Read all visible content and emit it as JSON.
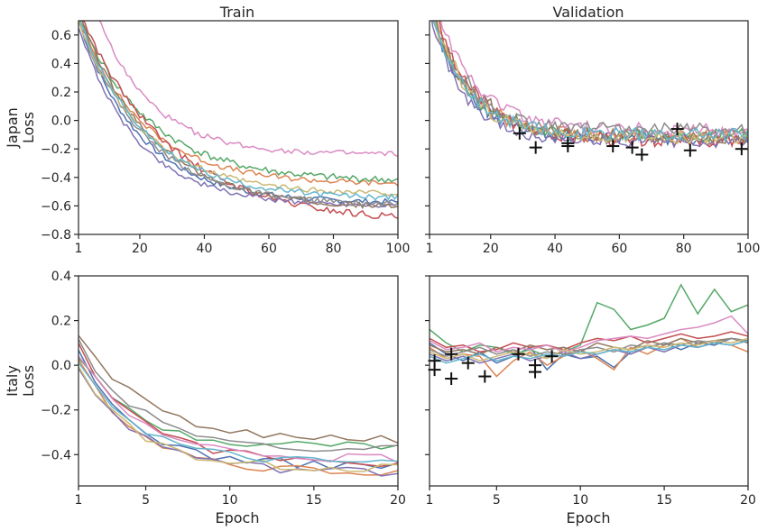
{
  "row_labels": [
    "Japan\nLoss",
    "Italy\nLoss"
  ],
  "column_titles": [
    "Train",
    "Validation"
  ],
  "xlabel": "Epoch",
  "series_colors": [
    "#4c72b0",
    "#dd8452",
    "#55a868",
    "#c44e52",
    "#8172b3",
    "#937860",
    "#da8bc3",
    "#8c8c8c",
    "#ccb974",
    "#64b5cd"
  ],
  "marker_color": "#111111",
  "chart_data": [
    {
      "type": "line",
      "panel": "japan-train",
      "title": "Train",
      "ylabel": "Japan\nLoss",
      "xlabel": "",
      "xlim": [
        1,
        100
      ],
      "ylim": [
        -0.8,
        0.7
      ],
      "xticks": [
        1,
        20,
        40,
        60,
        80,
        100
      ],
      "yticks": [
        -0.8,
        -0.6,
        -0.4,
        -0.2,
        0.0,
        0.2,
        0.4,
        0.6
      ],
      "x_start": 1,
      "x_step": 1,
      "n_points": 100,
      "grid": false,
      "legend": "none",
      "series": [
        {
          "color": "#4c72b0",
          "y_start": 0.7,
          "y_end": -0.58,
          "rate": 0.052,
          "noise": 0.02
        },
        {
          "color": "#dd8452",
          "y_start": 0.72,
          "y_end": -0.45,
          "rate": 0.05,
          "noise": 0.02
        },
        {
          "color": "#55a868",
          "y_start": 0.74,
          "y_end": -0.43,
          "rate": 0.046,
          "noise": 0.025
        },
        {
          "color": "#c44e52",
          "y_start": 0.78,
          "y_end": -0.72,
          "rate": 0.036,
          "noise": 0.025
        },
        {
          "color": "#8172b3",
          "y_start": 0.66,
          "y_end": -0.6,
          "rate": 0.055,
          "noise": 0.018
        },
        {
          "color": "#937860",
          "y_start": 0.76,
          "y_end": -0.62,
          "rate": 0.045,
          "noise": 0.02
        },
        {
          "color": "#da8bc3",
          "y_start": 1.15,
          "y_end": -0.24,
          "rate": 0.06,
          "noise": 0.02
        },
        {
          "color": "#8c8c8c",
          "y_start": 0.72,
          "y_end": -0.6,
          "rate": 0.048,
          "noise": 0.02
        },
        {
          "color": "#ccb974",
          "y_start": 0.7,
          "y_end": -0.52,
          "rate": 0.05,
          "noise": 0.02
        },
        {
          "color": "#64b5cd",
          "y_start": 0.73,
          "y_end": -0.55,
          "rate": 0.049,
          "noise": 0.02
        }
      ],
      "markers": []
    },
    {
      "type": "line",
      "panel": "japan-validation",
      "title": "Validation",
      "ylabel": "",
      "xlabel": "",
      "xlim": [
        1,
        100
      ],
      "ylim": [
        -0.8,
        0.7
      ],
      "xticks": [
        1,
        20,
        40,
        60,
        80,
        100
      ],
      "yticks": [
        -0.8,
        -0.6,
        -0.4,
        -0.2,
        0.0,
        0.2,
        0.4,
        0.6
      ],
      "x_start": 1,
      "x_step": 1,
      "n_points": 100,
      "grid": false,
      "legend": "none",
      "series": [
        {
          "color": "#4c72b0",
          "y_start": 0.8,
          "y_end": -0.13,
          "rate": 0.09,
          "noise": 0.04
        },
        {
          "color": "#dd8452",
          "y_start": 0.85,
          "y_end": -0.12,
          "rate": 0.085,
          "noise": 0.05
        },
        {
          "color": "#55a868",
          "y_start": 0.82,
          "y_end": -0.1,
          "rate": 0.09,
          "noise": 0.045
        },
        {
          "color": "#c44e52",
          "y_start": 0.9,
          "y_end": -0.14,
          "rate": 0.08,
          "noise": 0.05
        },
        {
          "color": "#8172b3",
          "y_start": 0.78,
          "y_end": -0.15,
          "rate": 0.095,
          "noise": 0.04
        },
        {
          "color": "#937860",
          "y_start": 0.84,
          "y_end": -0.11,
          "rate": 0.085,
          "noise": 0.05
        },
        {
          "color": "#da8bc3",
          "y_start": 0.95,
          "y_end": -0.07,
          "rate": 0.08,
          "noise": 0.045
        },
        {
          "color": "#8c8c8c",
          "y_start": 0.8,
          "y_end": -0.06,
          "rate": 0.09,
          "noise": 0.04
        },
        {
          "color": "#ccb974",
          "y_start": 0.82,
          "y_end": -0.12,
          "rate": 0.088,
          "noise": 0.045
        },
        {
          "color": "#64b5cd",
          "y_start": 0.8,
          "y_end": -0.1,
          "rate": 0.09,
          "noise": 0.045
        }
      ],
      "markers": [
        [
          29,
          -0.09
        ],
        [
          34,
          -0.19
        ],
        [
          44,
          -0.16
        ],
        [
          44,
          -0.18
        ],
        [
          58,
          -0.18
        ],
        [
          64,
          -0.19
        ],
        [
          67,
          -0.24
        ],
        [
          78,
          -0.06
        ],
        [
          82,
          -0.21
        ],
        [
          98,
          -0.2
        ]
      ]
    },
    {
      "type": "line",
      "panel": "italy-train",
      "title": "",
      "ylabel": "Italy\nLoss",
      "xlabel": "Epoch",
      "xlim": [
        1,
        20
      ],
      "ylim": [
        -0.54,
        0.4
      ],
      "xticks": [
        1,
        5,
        10,
        15,
        20
      ],
      "yticks": [
        -0.4,
        -0.2,
        0.0,
        0.2,
        0.4
      ],
      "x_start": 1,
      "x_step": 1,
      "n_points": 20,
      "grid": false,
      "legend": "none",
      "series": [
        {
          "color": "#4c72b0",
          "y_start": 0.05,
          "y_end": -0.45,
          "rate": 0.3,
          "noise": 0.02
        },
        {
          "color": "#dd8452",
          "y_start": 0.02,
          "y_end": -0.48,
          "rate": 0.28,
          "noise": 0.02
        },
        {
          "color": "#55a868",
          "y_start": 0.04,
          "y_end": -0.36,
          "rate": 0.32,
          "noise": 0.02
        },
        {
          "color": "#c44e52",
          "y_start": 0.08,
          "y_end": -0.44,
          "rate": 0.26,
          "noise": 0.02
        },
        {
          "color": "#8172b3",
          "y_start": -0.02,
          "y_end": -0.48,
          "rate": 0.27,
          "noise": 0.02
        },
        {
          "color": "#937860",
          "y_start": 0.14,
          "y_end": -0.34,
          "rate": 0.25,
          "noise": 0.02
        },
        {
          "color": "#da8bc3",
          "y_start": 0.06,
          "y_end": -0.42,
          "rate": 0.3,
          "noise": 0.02
        },
        {
          "color": "#8c8c8c",
          "y_start": 0.11,
          "y_end": -0.38,
          "rate": 0.28,
          "noise": 0.02
        },
        {
          "color": "#ccb974",
          "y_start": 0.0,
          "y_end": -0.46,
          "rate": 0.3,
          "noise": 0.02
        },
        {
          "color": "#64b5cd",
          "y_start": 0.03,
          "y_end": -0.44,
          "rate": 0.29,
          "noise": 0.02
        }
      ],
      "markers": []
    },
    {
      "type": "line",
      "panel": "italy-validation",
      "title": "",
      "ylabel": "",
      "xlabel": "Epoch",
      "xlim": [
        1,
        20
      ],
      "ylim": [
        -0.54,
        0.4
      ],
      "xticks": [
        1,
        5,
        10,
        15,
        20
      ],
      "yticks": [
        -0.4,
        -0.2,
        0.0,
        0.2,
        0.4
      ],
      "x_start": 1,
      "x_step": 1,
      "n_points": 20,
      "grid": false,
      "legend": "none",
      "series": [
        {
          "color": "#4c72b0",
          "values": [
            0.1,
            0.05,
            0.02,
            0.06,
            0.01,
            0.04,
            0.08,
            -0.02,
            0.05,
            0.03,
            0.04,
            -0.01,
            0.06,
            0.08,
            0.1,
            0.07,
            0.1,
            0.09,
            0.12,
            0.11
          ]
        },
        {
          "color": "#dd8452",
          "values": [
            0.08,
            0.03,
            0.05,
            0.04,
            -0.05,
            0.02,
            0.06,
            0.0,
            0.04,
            0.07,
            0.03,
            -0.02,
            0.08,
            0.05,
            0.09,
            0.12,
            0.08,
            0.1,
            0.09,
            0.06
          ]
        },
        {
          "color": "#55a868",
          "values": [
            0.16,
            0.1,
            0.06,
            0.09,
            0.08,
            0.05,
            0.07,
            0.04,
            0.06,
            0.09,
            0.28,
            0.25,
            0.16,
            0.18,
            0.21,
            0.36,
            0.23,
            0.34,
            0.24,
            0.27
          ]
        },
        {
          "color": "#c44e52",
          "values": [
            0.12,
            0.08,
            0.09,
            0.06,
            0.07,
            0.1,
            0.08,
            0.09,
            0.07,
            0.1,
            0.12,
            0.11,
            0.13,
            0.1,
            0.12,
            0.14,
            0.12,
            0.13,
            0.15,
            0.13
          ]
        },
        {
          "color": "#8172b3",
          "values": [
            0.05,
            0.02,
            0.04,
            0.01,
            0.03,
            0.05,
            0.02,
            0.04,
            0.06,
            0.03,
            0.05,
            0.07,
            0.05,
            0.08,
            0.06,
            0.09,
            0.08,
            0.1,
            0.09,
            0.11
          ]
        },
        {
          "color": "#937860",
          "values": [
            0.09,
            0.06,
            0.07,
            0.05,
            0.08,
            0.06,
            0.09,
            0.07,
            0.08,
            0.06,
            0.1,
            0.08,
            0.07,
            0.11,
            0.09,
            0.12,
            0.1,
            0.11,
            0.12,
            0.1
          ]
        },
        {
          "color": "#da8bc3",
          "values": [
            0.11,
            0.07,
            0.08,
            0.1,
            0.06,
            0.08,
            0.07,
            0.09,
            0.06,
            0.08,
            0.11,
            0.12,
            0.13,
            0.12,
            0.14,
            0.16,
            0.17,
            0.19,
            0.22,
            0.14
          ]
        },
        {
          "color": "#8c8c8c",
          "values": [
            0.07,
            0.04,
            0.06,
            0.08,
            0.05,
            0.07,
            0.04,
            0.06,
            0.05,
            0.07,
            0.08,
            0.06,
            0.09,
            0.08,
            0.1,
            0.09,
            0.11,
            0.1,
            0.12,
            0.11
          ]
        },
        {
          "color": "#ccb974",
          "values": [
            0.06,
            0.03,
            0.05,
            0.02,
            0.04,
            0.06,
            0.05,
            0.03,
            0.07,
            0.05,
            0.06,
            0.08,
            0.07,
            0.09,
            0.08,
            0.1,
            0.09,
            0.11,
            0.1,
            0.12
          ]
        },
        {
          "color": "#64b5cd",
          "values": [
            0.04,
            0.01,
            0.03,
            0.05,
            0.02,
            0.04,
            0.03,
            0.05,
            0.04,
            0.06,
            0.05,
            0.07,
            0.06,
            0.08,
            0.07,
            0.09,
            0.08,
            0.1,
            0.09,
            0.11
          ]
        }
      ],
      "markers": [
        [
          1.3,
          0.02
        ],
        [
          1.3,
          -0.02
        ],
        [
          2.3,
          0.05
        ],
        [
          2.3,
          -0.06
        ],
        [
          3.3,
          0.01
        ],
        [
          4.3,
          -0.05
        ],
        [
          6.3,
          0.05
        ],
        [
          7.3,
          0.0
        ],
        [
          7.3,
          -0.03
        ],
        [
          8.3,
          0.04
        ]
      ]
    }
  ]
}
